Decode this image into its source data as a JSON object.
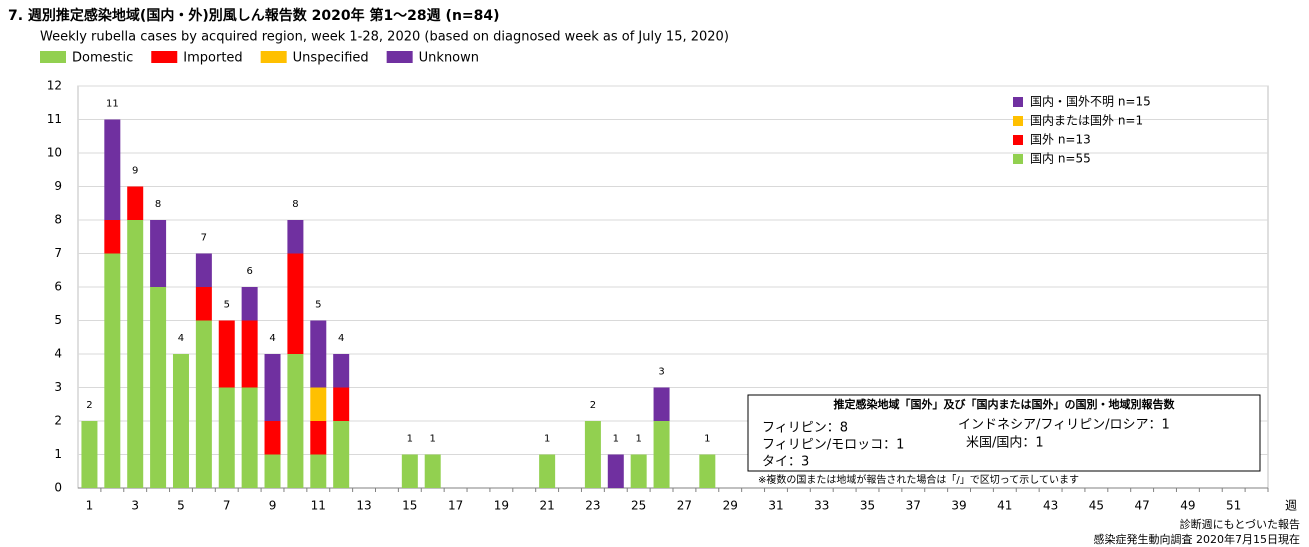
{
  "chart_data": {
    "type": "stacked_bar",
    "title": "7. 週別推定感染地域(国内・外)別風しん報告数 2020年 第1～28週 (n=84)",
    "subtitle": "Weekly rubella cases by acquired region, week 1-28, 2020 (based on diagnosed week as of July 15, 2020)",
    "x_label": "週",
    "categories": [
      "1",
      null,
      "3",
      null,
      "5",
      null,
      "7",
      null,
      "9",
      null,
      "11",
      null,
      "13",
      null,
      "15",
      null,
      "17",
      null,
      "19",
      null,
      "21",
      null,
      "23",
      null,
      "25",
      null,
      "27",
      null,
      "29",
      null,
      "31",
      null,
      "33",
      null,
      "35",
      null,
      "37",
      null,
      "39",
      null,
      "41",
      null,
      "43",
      null,
      "45",
      null,
      "47",
      null,
      "49",
      null,
      "51",
      null
    ],
    "series": [
      {
        "name": "Domestic",
        "legend_ja": "国内 n=55",
        "color": "#92d050",
        "values": [
          2,
          7,
          8,
          6,
          4,
          5,
          3,
          3,
          1,
          4,
          1,
          2,
          0,
          0,
          1,
          1,
          0,
          0,
          0,
          0,
          1,
          0,
          2,
          0,
          1,
          2,
          0,
          1,
          0,
          0,
          0,
          0,
          0,
          0,
          0,
          0,
          0,
          0,
          0,
          0,
          0,
          0,
          0,
          0,
          0,
          0,
          0,
          0,
          0,
          0,
          0,
          0
        ]
      },
      {
        "name": "Imported",
        "legend_ja": "国外 n=13",
        "color": "#ff0000",
        "values": [
          0,
          1,
          1,
          0,
          0,
          1,
          2,
          2,
          1,
          3,
          1,
          1,
          0,
          0,
          0,
          0,
          0,
          0,
          0,
          0,
          0,
          0,
          0,
          0,
          0,
          0,
          0,
          0,
          0,
          0,
          0,
          0,
          0,
          0,
          0,
          0,
          0,
          0,
          0,
          0,
          0,
          0,
          0,
          0,
          0,
          0,
          0,
          0,
          0,
          0,
          0,
          0
        ]
      },
      {
        "name": "Unspecified",
        "legend_ja": "国内または国外 n=1",
        "color": "#ffc000",
        "values": [
          0,
          0,
          0,
          0,
          0,
          0,
          0,
          0,
          0,
          0,
          1,
          0,
          0,
          0,
          0,
          0,
          0,
          0,
          0,
          0,
          0,
          0,
          0,
          0,
          0,
          0,
          0,
          0,
          0,
          0,
          0,
          0,
          0,
          0,
          0,
          0,
          0,
          0,
          0,
          0,
          0,
          0,
          0,
          0,
          0,
          0,
          0,
          0,
          0,
          0,
          0,
          0
        ]
      },
      {
        "name": "Unknown",
        "legend_ja": "国内・国外不明 n=15",
        "color": "#7030a0",
        "values": [
          0,
          3,
          0,
          2,
          0,
          1,
          0,
          1,
          2,
          1,
          2,
          1,
          0,
          0,
          0,
          0,
          0,
          0,
          0,
          0,
          0,
          0,
          0,
          1,
          0,
          1,
          0,
          0,
          0,
          0,
          0,
          0,
          0,
          0,
          0,
          0,
          0,
          0,
          0,
          0,
          0,
          0,
          0,
          0,
          0,
          0,
          0,
          0,
          0,
          0,
          0,
          0
        ]
      }
    ],
    "totals": [
      2,
      11,
      9,
      8,
      4,
      7,
      5,
      6,
      4,
      8,
      5,
      4,
      null,
      null,
      1,
      1,
      null,
      null,
      null,
      null,
      1,
      null,
      2,
      1,
      1,
      3,
      null,
      1,
      null,
      null,
      null,
      null,
      null,
      null,
      null,
      null,
      null,
      null,
      null,
      null,
      null,
      null,
      null,
      null,
      null,
      null,
      null,
      null,
      null,
      null,
      null,
      null
    ],
    "ylim": [
      0,
      12
    ],
    "yticks": [
      0,
      1,
      2,
      3,
      4,
      5,
      6,
      7,
      8,
      9,
      10,
      11,
      12
    ],
    "grid": true,
    "annotation_box": {
      "title": "推定感染地域「国外」及び「国内または国外」の国別・地域別報告数",
      "lines": [
        "フィリピン：8",
        "インドネシア/フィリピン/ロシア：1",
        "フィリピン/モロッコ：1",
        "米国/国内：1",
        "タイ：3"
      ],
      "note": "※複数の国または地域が報告された場合は「/」で区切って示しています"
    },
    "footnotes": [
      "診断週にもとづいた報告",
      "感染症発生動向調査 2020年7月15日現在"
    ]
  }
}
